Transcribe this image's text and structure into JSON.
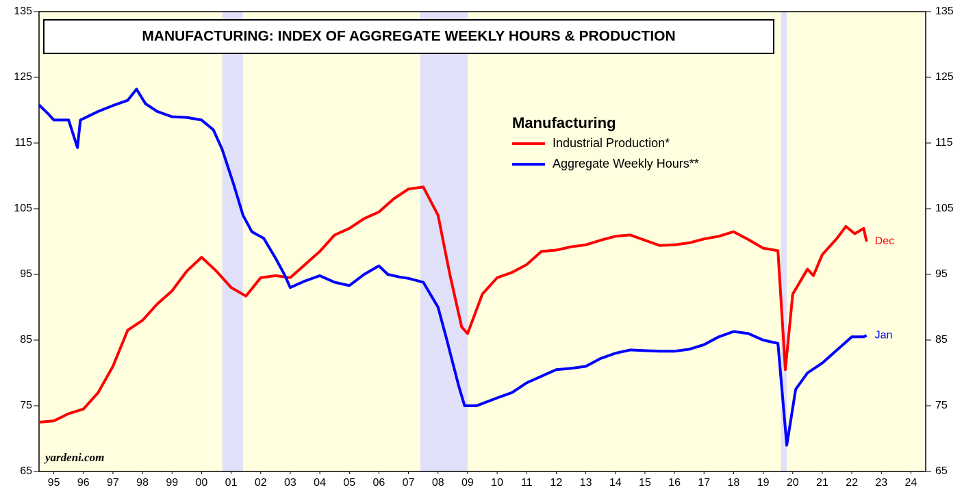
{
  "chart_data": {
    "type": "line",
    "title": "MANUFACTURING: INDEX OF AGGREGATE WEEKLY HOURS & PRODUCTION",
    "legend_title": "Manufacturing",
    "source": "yardeni.com",
    "xlim": [
      1995,
      2025
    ],
    "xticks": [
      {
        "value": 1995.5,
        "label": "95"
      },
      {
        "value": 1996.5,
        "label": "96"
      },
      {
        "value": 1997.5,
        "label": "97"
      },
      {
        "value": 1998.5,
        "label": "98"
      },
      {
        "value": 1999.5,
        "label": "99"
      },
      {
        "value": 2000.5,
        "label": "00"
      },
      {
        "value": 2001.5,
        "label": "01"
      },
      {
        "value": 2002.5,
        "label": "02"
      },
      {
        "value": 2003.5,
        "label": "03"
      },
      {
        "value": 2004.5,
        "label": "04"
      },
      {
        "value": 2005.5,
        "label": "05"
      },
      {
        "value": 2006.5,
        "label": "06"
      },
      {
        "value": 2007.5,
        "label": "07"
      },
      {
        "value": 2008.5,
        "label": "08"
      },
      {
        "value": 2009.5,
        "label": "09"
      },
      {
        "value": 2010.5,
        "label": "10"
      },
      {
        "value": 2011.5,
        "label": "11"
      },
      {
        "value": 2012.5,
        "label": "12"
      },
      {
        "value": 2013.5,
        "label": "13"
      },
      {
        "value": 2014.5,
        "label": "14"
      },
      {
        "value": 2015.5,
        "label": "15"
      },
      {
        "value": 2016.5,
        "label": "16"
      },
      {
        "value": 2017.5,
        "label": "17"
      },
      {
        "value": 2018.5,
        "label": "18"
      },
      {
        "value": 2019.5,
        "label": "19"
      },
      {
        "value": 2020.5,
        "label": "20"
      },
      {
        "value": 2021.5,
        "label": "21"
      },
      {
        "value": 2022.5,
        "label": "22"
      },
      {
        "value": 2023.5,
        "label": "23"
      },
      {
        "value": 2024.5,
        "label": "24"
      }
    ],
    "ylim": [
      65,
      135
    ],
    "yticks": [
      65,
      75,
      85,
      95,
      105,
      115,
      125,
      135
    ],
    "recessions": [
      [
        2001.2,
        2001.9
      ],
      [
        2007.9,
        2009.5
      ],
      [
        2020.1,
        2020.3
      ]
    ],
    "background": "#ffffe0",
    "recession_color": "#e0e0f8",
    "series": [
      {
        "name": "Industrial Production*",
        "color": "#ff0000",
        "end_label": "Dec",
        "x": [
          1995.0,
          1995.5,
          1996.0,
          1996.5,
          1997.0,
          1997.5,
          1998.0,
          1998.5,
          1999.0,
          1999.5,
          2000.0,
          2000.5,
          2001.0,
          2001.5,
          2002.0,
          2002.5,
          2003.0,
          2003.5,
          2004.0,
          2004.5,
          2005.0,
          2005.5,
          2006.0,
          2006.5,
          2007.0,
          2007.5,
          2008.0,
          2008.5,
          2008.9,
          2009.3,
          2009.5,
          2010.0,
          2010.5,
          2011.0,
          2011.5,
          2012.0,
          2012.5,
          2013.0,
          2013.5,
          2014.0,
          2014.5,
          2015.0,
          2015.5,
          2016.0,
          2016.5,
          2017.0,
          2017.5,
          2018.0,
          2018.5,
          2019.0,
          2019.5,
          2020.0,
          2020.25,
          2020.5,
          2021.0,
          2021.2,
          2021.5,
          2022.0,
          2022.3,
          2022.6,
          2022.9,
          2023.0
        ],
        "values": [
          72.5,
          72.7,
          73.8,
          74.5,
          77,
          81,
          86.5,
          88,
          90.5,
          92.5,
          95.5,
          97.6,
          95.5,
          93,
          91.7,
          94.5,
          94.8,
          94.5,
          96.5,
          98.5,
          101,
          102,
          103.5,
          104.5,
          106.5,
          108,
          108.3,
          104,
          95,
          87,
          86,
          92,
          94.5,
          95.3,
          96.5,
          98.5,
          98.7,
          99.2,
          99.5,
          100.2,
          100.8,
          101,
          100.2,
          99.4,
          99.5,
          99.8,
          100.4,
          100.8,
          101.5,
          100.3,
          99,
          98.6,
          80.5,
          92,
          95.8,
          94.8,
          98,
          100.5,
          102.3,
          101.2,
          102,
          100
        ]
      },
      {
        "name": "Aggregate Weekly Hours**",
        "color": "#0000ff",
        "end_label": "Jan",
        "x": [
          1995.0,
          1995.3,
          1995.5,
          1996.0,
          1996.3,
          1996.4,
          1997.0,
          1997.5,
          1998.0,
          1998.3,
          1998.6,
          1999.0,
          1999.5,
          2000.0,
          2000.5,
          2000.9,
          2001.2,
          2001.6,
          2001.9,
          2002.2,
          2002.6,
          2003.0,
          2003.3,
          2003.5,
          2004.0,
          2004.5,
          2005.0,
          2005.5,
          2006.0,
          2006.5,
          2006.8,
          2007.2,
          2007.5,
          2008.0,
          2008.5,
          2008.8,
          2009.2,
          2009.4,
          2009.8,
          2010.5,
          2011.0,
          2011.5,
          2012.0,
          2012.5,
          2013.0,
          2013.5,
          2014.0,
          2014.5,
          2015.0,
          2015.5,
          2016.0,
          2016.5,
          2017.0,
          2017.5,
          2018.0,
          2018.5,
          2019.0,
          2019.5,
          2020.0,
          2020.3,
          2020.6,
          2021.0,
          2021.5,
          2022.0,
          2022.5,
          2022.9,
          2023.0
        ],
        "values": [
          120.8,
          119.5,
          118.5,
          118.5,
          114.3,
          118.5,
          119.8,
          120.7,
          121.5,
          123.2,
          121,
          119.8,
          119,
          118.9,
          118.5,
          117,
          114,
          108.5,
          104,
          101.5,
          100.5,
          97.5,
          95,
          93,
          94,
          94.8,
          93.8,
          93.3,
          95,
          96.3,
          95,
          94.6,
          94.4,
          93.8,
          90,
          85,
          78,
          75,
          75,
          76.2,
          77,
          78.5,
          79.5,
          80.5,
          80.7,
          81,
          82.2,
          83,
          83.5,
          83.4,
          83.3,
          83.3,
          83.6,
          84.3,
          85.5,
          86.3,
          86,
          85,
          84.5,
          69,
          77.5,
          80,
          81.5,
          83.5,
          85.5,
          85.5,
          85.7
        ]
      }
    ]
  }
}
